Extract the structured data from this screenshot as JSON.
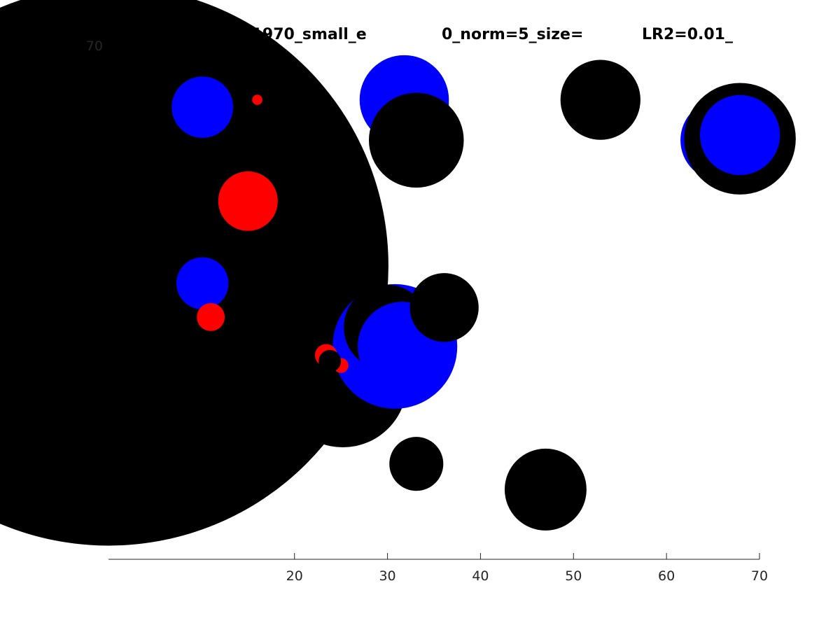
{
  "chart_data": {
    "type": "scatter",
    "title": "year_2010vs1970_small_e",
    "title_fragments": [
      "0_norm=5_size=",
      "LR2=0.01_"
    ],
    "xlabel": "",
    "ylabel": "",
    "xlim": [
      0,
      70
    ],
    "ylim": [
      0,
      70
    ],
    "x_ticks": [
      "20",
      "30",
      "40",
      "50",
      "60",
      "70"
    ],
    "y_ticks": [
      "70"
    ],
    "grid": false,
    "legend": "none",
    "colors": {
      "black": "#000000",
      "blue": "#0000ff",
      "red": "#ff0000"
    },
    "points": [
      {
        "x": 0,
        "y": 40,
        "r": 30.1,
        "color": "black"
      },
      {
        "x": 25.2,
        "y": 24,
        "r": 6.9,
        "color": "black"
      },
      {
        "x": 25.2,
        "y": 22.5,
        "r": 4.5,
        "color": "black"
      },
      {
        "x": 33.1,
        "y": 13,
        "r": 2.9,
        "color": "black"
      },
      {
        "x": 30.8,
        "y": 29,
        "r": 6.7,
        "color": "blue"
      },
      {
        "x": 29.9,
        "y": 31.6,
        "r": 4.6,
        "color": "black"
      },
      {
        "x": 31.6,
        "y": 29,
        "r": 4.8,
        "color": "blue"
      },
      {
        "x": 36.1,
        "y": 34.3,
        "r": 3.7,
        "color": "black"
      },
      {
        "x": 47.0,
        "y": 9.5,
        "r": 4.4,
        "color": "black"
      },
      {
        "x": 31.8,
        "y": 62.6,
        "r": 4.8,
        "color": "blue"
      },
      {
        "x": 33.6,
        "y": 62.0,
        "r": 3.0,
        "color": "blue"
      },
      {
        "x": 33.1,
        "y": 57.1,
        "r": 5.1,
        "color": "black"
      },
      {
        "x": 52.9,
        "y": 62.6,
        "r": 4.3,
        "color": "black"
      },
      {
        "x": 65.9,
        "y": 57.1,
        "r": 4.4,
        "color": "blue"
      },
      {
        "x": 67.9,
        "y": 57.3,
        "r": 6.0,
        "color": "black"
      },
      {
        "x": 67.9,
        "y": 57.8,
        "r": 4.3,
        "color": "blue"
      },
      {
        "x": 19.3,
        "y": 62.6,
        "r": 3.1,
        "color": "black"
      },
      {
        "x": 10.1,
        "y": 61.6,
        "r": 3.3,
        "color": "blue"
      },
      {
        "x": 10.1,
        "y": 37.6,
        "r": 2.8,
        "color": "blue"
      },
      {
        "x": 11.0,
        "y": 33.0,
        "r": 1.5,
        "color": "red"
      },
      {
        "x": 15.0,
        "y": 48.8,
        "r": 3.2,
        "color": "red"
      },
      {
        "x": 16.0,
        "y": 62.6,
        "r": 0.55,
        "color": "red"
      },
      {
        "x": 25.0,
        "y": 26.4,
        "r": 0.8,
        "color": "red"
      },
      {
        "x": 23.4,
        "y": 27.8,
        "r": 1.2,
        "color": "red"
      },
      {
        "x": 23.8,
        "y": 27.0,
        "r": 1.2,
        "color": "black"
      }
    ]
  }
}
